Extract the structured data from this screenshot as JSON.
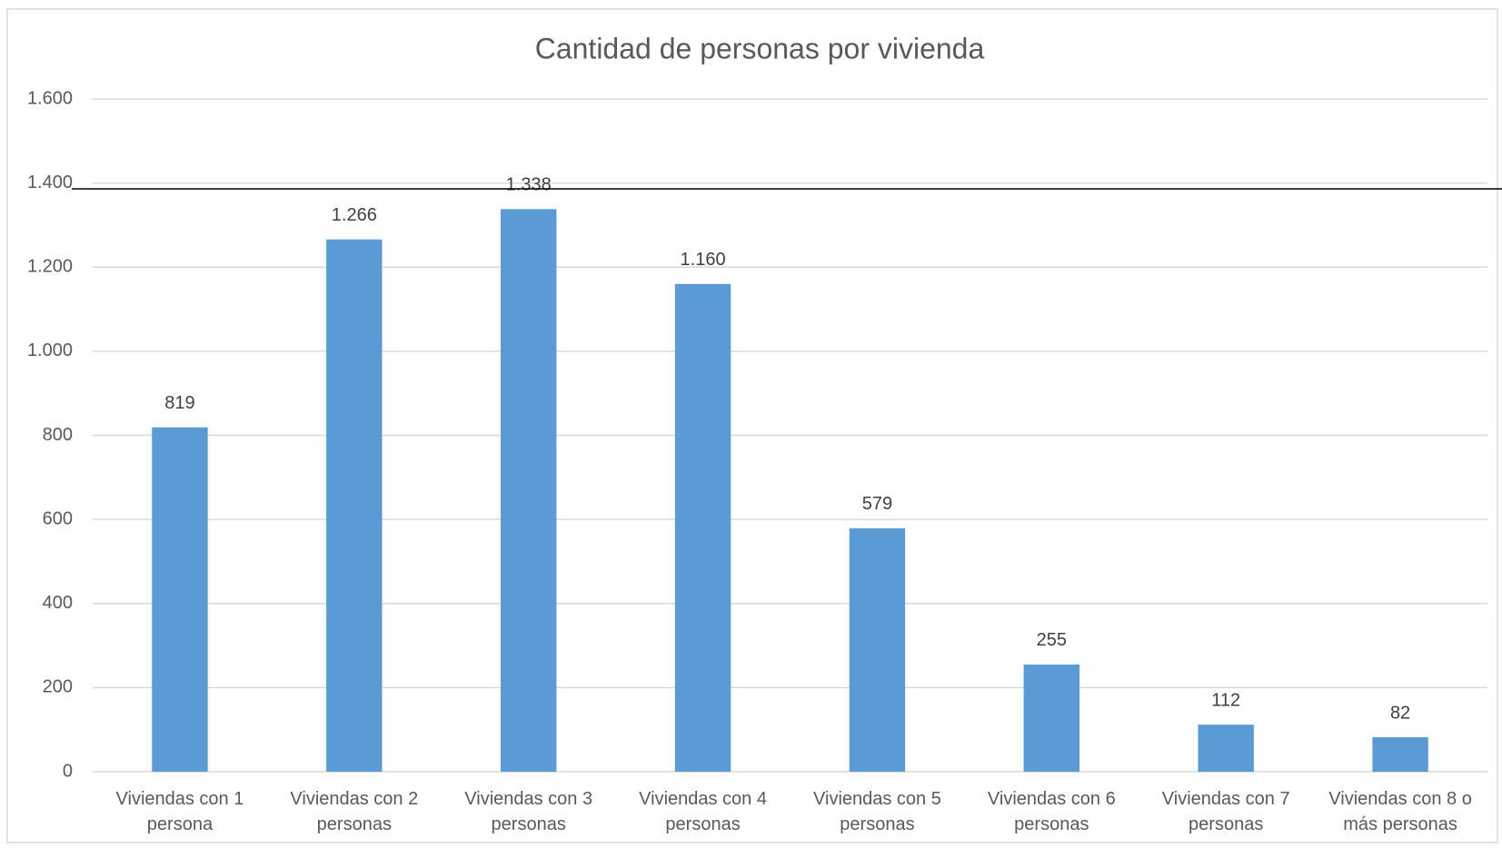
{
  "chart_data": {
    "type": "bar",
    "title": "Cantidad de personas por vivienda",
    "categories": [
      "Viviendas con 1 persona",
      "Viviendas con 2 personas",
      "Viviendas con 3 personas",
      "Viviendas con 4 personas",
      "Viviendas con 5 personas",
      "Viviendas con 6 personas",
      "Viviendas con 7 personas",
      "Viviendas con 8 o más personas"
    ],
    "values": [
      819,
      1266,
      1338,
      1160,
      579,
      255,
      112,
      82
    ],
    "value_labels": [
      "819",
      "1.266",
      "1.338",
      "1.160",
      "579",
      "255",
      "112",
      "82"
    ],
    "color": "#5b9bd5",
    "ylim": [
      0,
      1600
    ],
    "yticks": [
      0,
      200,
      400,
      600,
      800,
      {
        "value": 1000,
        "label": "1.000"
      },
      {
        "value": 1200,
        "label": "1.200"
      },
      {
        "value": 1400,
        "label": "1.400"
      },
      {
        "value": 1600,
        "label": "1.600"
      }
    ],
    "grid": true
  }
}
